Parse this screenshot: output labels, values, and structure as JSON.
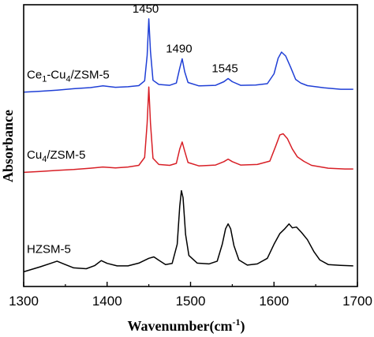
{
  "chart_data": {
    "type": "line",
    "xlabel": "Wavenumber(cm",
    "xlabel_sup": "-1",
    "xlabel_close": ")",
    "ylabel": "Absorbance",
    "xlim": [
      1300,
      1700
    ],
    "ylim": [
      0,
      1
    ],
    "x_ticks": [
      "1300",
      "1400",
      "1500",
      "1600",
      "1700"
    ],
    "colors": {
      "Ce1-Cu4/ZSM-5": "#1f3fd6",
      "Cu4/ZSM-5": "#d81f26",
      "HZSM-5": "#000000"
    },
    "series": [
      {
        "name": "Ce1-Cu4/ZSM-5",
        "label_parts": [
          {
            "t": "Ce",
            "sub": false
          },
          {
            "t": "1",
            "sub": true
          },
          {
            "t": "-Cu",
            "sub": false
          },
          {
            "t": "4",
            "sub": true
          },
          {
            "t": "/ZSM-5",
            "sub": false
          }
        ],
        "points": [
          [
            1300,
            0.69
          ],
          [
            1320,
            0.693
          ],
          [
            1340,
            0.697
          ],
          [
            1360,
            0.702
          ],
          [
            1380,
            0.706
          ],
          [
            1395,
            0.712
          ],
          [
            1410,
            0.707
          ],
          [
            1425,
            0.709
          ],
          [
            1438,
            0.713
          ],
          [
            1445,
            0.73
          ],
          [
            1448,
            0.82
          ],
          [
            1450,
            0.95
          ],
          [
            1452,
            0.835
          ],
          [
            1455,
            0.732
          ],
          [
            1462,
            0.717
          ],
          [
            1475,
            0.714
          ],
          [
            1483,
            0.722
          ],
          [
            1487,
            0.775
          ],
          [
            1490,
            0.808
          ],
          [
            1493,
            0.762
          ],
          [
            1497,
            0.724
          ],
          [
            1510,
            0.712
          ],
          [
            1530,
            0.714
          ],
          [
            1540,
            0.727
          ],
          [
            1545,
            0.738
          ],
          [
            1550,
            0.727
          ],
          [
            1560,
            0.714
          ],
          [
            1578,
            0.715
          ],
          [
            1592,
            0.72
          ],
          [
            1600,
            0.755
          ],
          [
            1605,
            0.81
          ],
          [
            1609,
            0.832
          ],
          [
            1614,
            0.818
          ],
          [
            1620,
            0.778
          ],
          [
            1626,
            0.735
          ],
          [
            1632,
            0.722
          ],
          [
            1640,
            0.713
          ],
          [
            1660,
            0.705
          ],
          [
            1680,
            0.7
          ],
          [
            1695,
            0.7
          ]
        ]
      },
      {
        "name": "Cu4/ZSM-5",
        "label_parts": [
          {
            "t": "Cu",
            "sub": false
          },
          {
            "t": "4",
            "sub": true
          },
          {
            "t": "/ZSM-5",
            "sub": false
          }
        ],
        "points": [
          [
            1300,
            0.405
          ],
          [
            1320,
            0.408
          ],
          [
            1340,
            0.412
          ],
          [
            1360,
            0.415
          ],
          [
            1380,
            0.42
          ],
          [
            1395,
            0.424
          ],
          [
            1410,
            0.421
          ],
          [
            1425,
            0.424
          ],
          [
            1438,
            0.43
          ],
          [
            1445,
            0.458
          ],
          [
            1448,
            0.58
          ],
          [
            1450,
            0.708
          ],
          [
            1452,
            0.58
          ],
          [
            1455,
            0.455
          ],
          [
            1462,
            0.433
          ],
          [
            1475,
            0.43
          ],
          [
            1483,
            0.437
          ],
          [
            1487,
            0.488
          ],
          [
            1490,
            0.513
          ],
          [
            1493,
            0.48
          ],
          [
            1497,
            0.44
          ],
          [
            1510,
            0.428
          ],
          [
            1530,
            0.431
          ],
          [
            1540,
            0.443
          ],
          [
            1545,
            0.452
          ],
          [
            1550,
            0.443
          ],
          [
            1560,
            0.431
          ],
          [
            1580,
            0.433
          ],
          [
            1595,
            0.445
          ],
          [
            1602,
            0.498
          ],
          [
            1607,
            0.538
          ],
          [
            1611,
            0.542
          ],
          [
            1616,
            0.525
          ],
          [
            1622,
            0.488
          ],
          [
            1628,
            0.46
          ],
          [
            1636,
            0.444
          ],
          [
            1645,
            0.43
          ],
          [
            1665,
            0.42
          ],
          [
            1685,
            0.417
          ],
          [
            1695,
            0.417
          ]
        ]
      },
      {
        "name": "HZSM-5",
        "label_parts": [
          {
            "t": "HZSM-5",
            "sub": false
          }
        ],
        "points": [
          [
            1300,
            0.052
          ],
          [
            1320,
            0.07
          ],
          [
            1333,
            0.083
          ],
          [
            1340,
            0.09
          ],
          [
            1348,
            0.08
          ],
          [
            1360,
            0.066
          ],
          [
            1375,
            0.063
          ],
          [
            1385,
            0.074
          ],
          [
            1393,
            0.092
          ],
          [
            1400,
            0.082
          ],
          [
            1412,
            0.073
          ],
          [
            1425,
            0.073
          ],
          [
            1438,
            0.083
          ],
          [
            1450,
            0.1
          ],
          [
            1456,
            0.105
          ],
          [
            1462,
            0.093
          ],
          [
            1470,
            0.078
          ],
          [
            1478,
            0.082
          ],
          [
            1484,
            0.15
          ],
          [
            1487,
            0.285
          ],
          [
            1489,
            0.34
          ],
          [
            1491,
            0.315
          ],
          [
            1494,
            0.185
          ],
          [
            1498,
            0.11
          ],
          [
            1508,
            0.083
          ],
          [
            1522,
            0.08
          ],
          [
            1532,
            0.09
          ],
          [
            1538,
            0.15
          ],
          [
            1542,
            0.205
          ],
          [
            1545,
            0.222
          ],
          [
            1548,
            0.205
          ],
          [
            1552,
            0.145
          ],
          [
            1558,
            0.094
          ],
          [
            1568,
            0.076
          ],
          [
            1580,
            0.08
          ],
          [
            1592,
            0.1
          ],
          [
            1600,
            0.15
          ],
          [
            1607,
            0.188
          ],
          [
            1613,
            0.205
          ],
          [
            1618,
            0.222
          ],
          [
            1622,
            0.208
          ],
          [
            1627,
            0.211
          ],
          [
            1633,
            0.192
          ],
          [
            1640,
            0.166
          ],
          [
            1648,
            0.123
          ],
          [
            1655,
            0.094
          ],
          [
            1665,
            0.078
          ],
          [
            1680,
            0.075
          ],
          [
            1695,
            0.073
          ]
        ]
      }
    ],
    "annotations": [
      {
        "text": "1450",
        "x": 1450,
        "series": "Ce1-Cu4/ZSM-5"
      },
      {
        "text": "1490",
        "x": 1490,
        "series": "Ce1-Cu4/ZSM-5"
      },
      {
        "text": "1545",
        "x": 1545,
        "series": "Ce1-Cu4/ZSM-5"
      }
    ],
    "grid": false,
    "legend": "none"
  }
}
